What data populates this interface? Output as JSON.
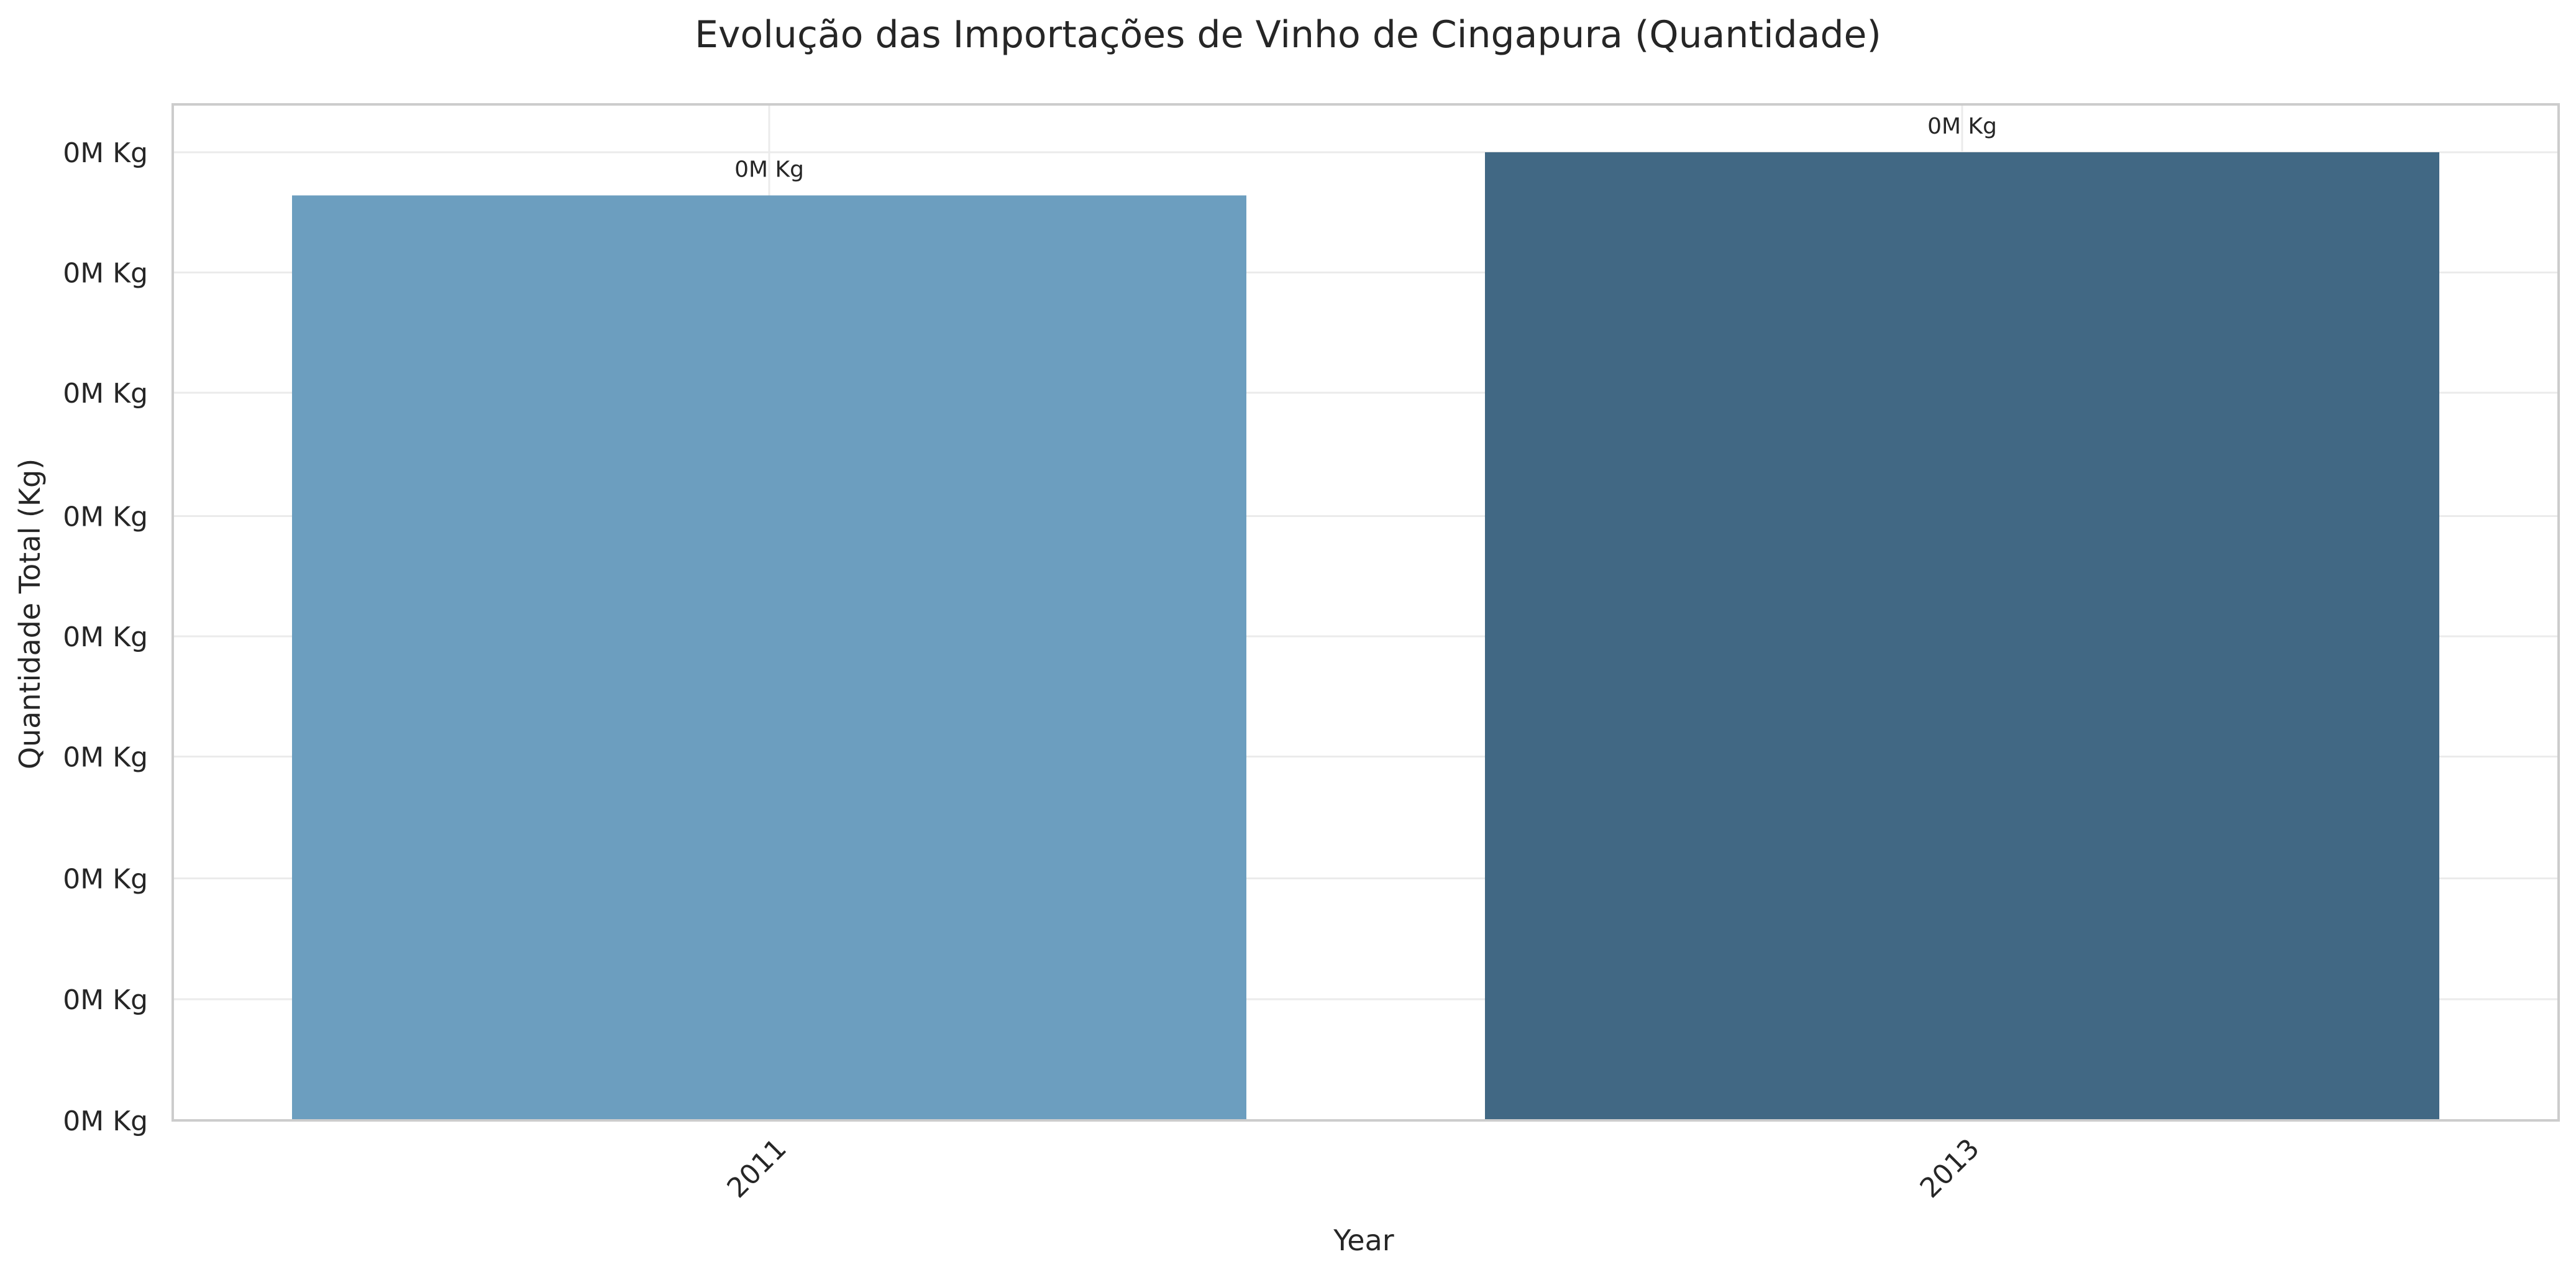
{
  "chart_data": {
    "type": "bar",
    "title": "Evolução das Importações de Vinho de Cingapura (Quantidade)",
    "xlabel": "Year",
    "ylabel": "Quantidade Total (Kg)",
    "categories": [
      "2011",
      "2013"
    ],
    "values": [
      0.0003,
      0.000314
    ],
    "unit": "M Kg",
    "ylim": [
      0,
      0.000314
    ],
    "y_ticks": [
      0,
      3.93e-05,
      7.85e-05,
      0.000118,
      0.000157,
      0.000196,
      0.000236,
      0.000275,
      0.000314
    ],
    "y_tick_labels": [
      "0M Kg",
      "0M Kg",
      "0M Kg",
      "0M Kg",
      "0M Kg",
      "0M Kg",
      "0M Kg",
      "0M Kg",
      "0M Kg"
    ],
    "bar_labels": [
      "0M Kg",
      "0M Kg"
    ],
    "colors": [
      "#6c9ebf",
      "#416884"
    ],
    "grid": true,
    "legend": "none"
  }
}
